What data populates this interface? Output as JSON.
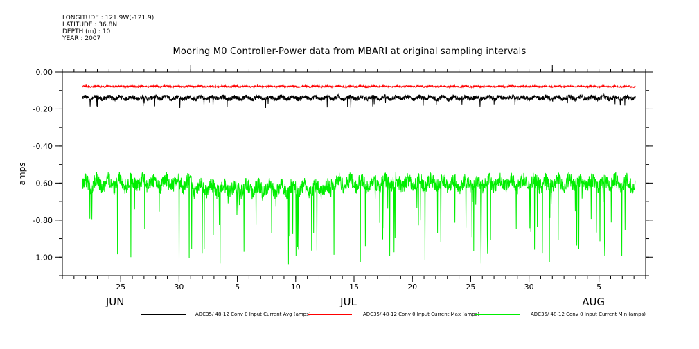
{
  "meta": {
    "longitude": "LONGITUDE : 121.9W(-121.9)",
    "latitude": "LATITUDE : 36.8N",
    "depth": "DEPTH (m) : 10",
    "year": "YEAR : 2007"
  },
  "chart_data": {
    "type": "line",
    "title": "Mooring M0 Controller-Power data from MBARI at original sampling intervals",
    "ylabel": "amps",
    "xlabel": "",
    "xlim": [
      "2007-06-20",
      "2007-08-09"
    ],
    "ylim": [
      -1.1,
      0.0
    ],
    "yticks": [
      "0.00",
      "-0.20",
      "-0.40",
      "-0.60",
      "-0.80",
      "-1.00"
    ],
    "ytick_values": [
      0.0,
      -0.2,
      -0.4,
      -0.6,
      -0.8,
      -1.0
    ],
    "xticks_day": [
      "25",
      "30",
      "5",
      "10",
      "15",
      "20",
      "25",
      "30",
      "5"
    ],
    "xtick_dates": [
      "2007-06-25",
      "2007-06-30",
      "2007-07-05",
      "2007-07-10",
      "2007-07-15",
      "2007-07-20",
      "2007-07-25",
      "2007-07-30",
      "2007-08-05"
    ],
    "months": [
      {
        "label": "JUN",
        "date": "2007-06-25"
      },
      {
        "label": "JUL",
        "date": "2007-07-15"
      },
      {
        "label": "AUG",
        "date": "2007-08-05"
      }
    ],
    "grid": false,
    "legend_position": "bottom",
    "series": [
      {
        "name": "ADC35/ 48-12 Conv 0 Input Current Avg (amps)",
        "color": "#000000",
        "start": "2007-06-20",
        "end": "2007-08-08",
        "mean": -0.14,
        "noise": 0.012,
        "spike_min": -0.195,
        "note_range": [
          -0.195,
          -0.1
        ]
      },
      {
        "name": "ADC35/ 48-12 Conv 0 Input Current Max (amps)",
        "color": "#ff0000",
        "start": "2007-06-20",
        "end": "2007-08-08",
        "mean": -0.078,
        "noise": 0.004,
        "spike_min": -0.085,
        "note_range": [
          -0.085,
          -0.07
        ]
      },
      {
        "name": "ADC35/ 48-12 Conv 0 Input Current Min (amps)",
        "color": "#00ee00",
        "start": "2007-06-20",
        "end": "2007-08-08",
        "mean": -0.6,
        "noise": 0.04,
        "spike_min": -1.04,
        "note_range": [
          -1.04,
          -0.52
        ]
      }
    ]
  }
}
